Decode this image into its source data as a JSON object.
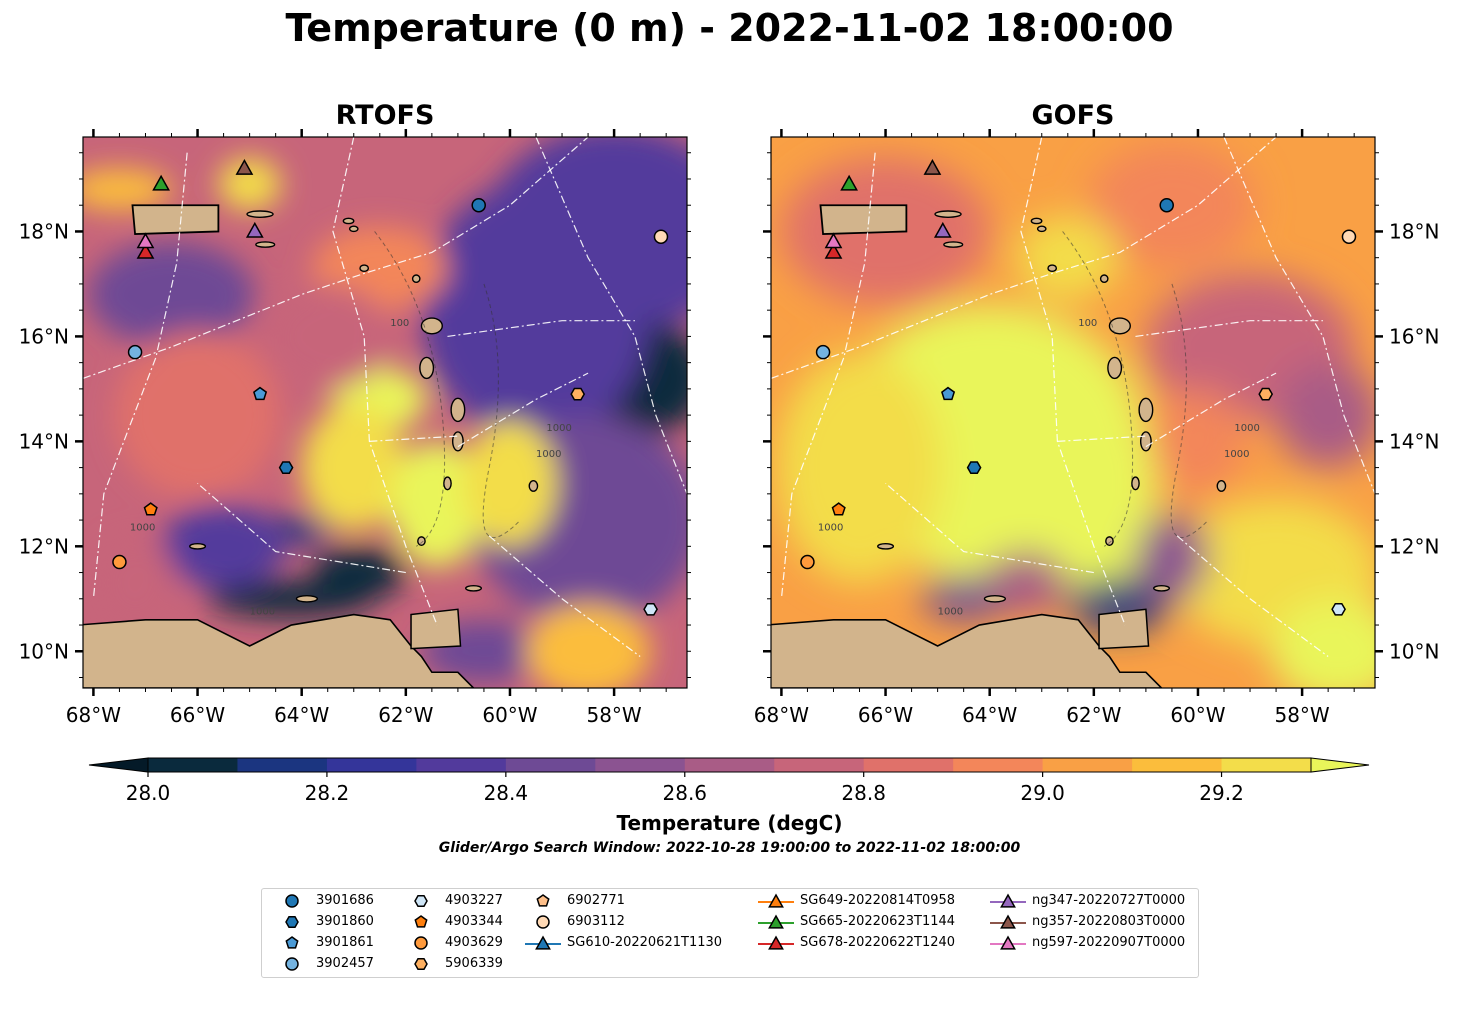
{
  "title": "Temperature (0 m) - 2022-11-02 18:00:00",
  "panels": [
    {
      "name": "RTOFS"
    },
    {
      "name": "GOFS"
    }
  ],
  "map": {
    "lon_range": [
      -68.2,
      -56.6
    ],
    "lat_range": [
      9.3,
      19.8
    ],
    "lon_ticks": [
      "68°W",
      "66°W",
      "64°W",
      "62°W",
      "60°W",
      "58°W"
    ],
    "lat_ticks_left": [
      "18°N",
      "16°N",
      "14°N",
      "12°N",
      "10°N"
    ],
    "lat_ticks_right": [
      "18°N",
      "16°N",
      "14°N",
      "12°N",
      "10°N"
    ],
    "bathymetry_contour_labels": [
      "100",
      "1000",
      "1000",
      "1000",
      "1000"
    ],
    "land_color": "#d2b48c",
    "boundary_style": "white dash-dot"
  },
  "colorbar": {
    "label": "Temperature (degC)",
    "tick_labels": [
      "28.0",
      "28.2",
      "28.4",
      "28.6",
      "28.8",
      "29.0",
      "29.2"
    ],
    "levels": [
      28.0,
      28.1,
      28.2,
      28.3,
      28.4,
      28.5,
      28.6,
      28.7,
      28.8,
      28.9,
      29.0,
      29.1,
      29.2,
      29.3
    ],
    "colors": [
      "#0a2a3d",
      "#1b3580",
      "#34359a",
      "#523a9c",
      "#6e4a95",
      "#8b5391",
      "#a95c86",
      "#c7657a",
      "#e0716a",
      "#f3865a",
      "#f9a045",
      "#fbbd3c",
      "#f3dd4a",
      "#e9f55a"
    ],
    "under_color": "#041a28",
    "over_color": "#e9f55a"
  },
  "search_window": "Glider/Argo Search Window: 2022-10-28 19:00:00 to 2022-11-02 18:00:00",
  "legend": {
    "col1": [
      "3901686",
      "3901860",
      "3901861",
      "3902457"
    ],
    "col2": [
      "4903227",
      "4903344",
      "4903629",
      "5906339"
    ],
    "col3": [
      "6902771",
      "6903112",
      "SG610-20220621T1130"
    ],
    "col4": [
      "SG649-20220814T0958",
      "SG665-20220623T1144",
      "SG678-20220622T1240"
    ],
    "col5": [
      "ng347-20220727T0000",
      "ng357-20220803T0000",
      "ng597-20220907T0000"
    ],
    "marker_colors": {
      "3901686": "#1f77b4",
      "3901860": "#1f77b4",
      "3901861": "#4a9ad6",
      "3902457": "#74b3e0",
      "4903227": "#cfe6f7",
      "4903344": "#ff7f0e",
      "4903629": "#ff9a3c",
      "5906339": "#ffb060",
      "6902771": "#ffc08a",
      "6903112": "#ffd9b5",
      "SG610-20220621T1130": "#1f77b4",
      "SG649-20220814T0958": "#ff7f0e",
      "SG665-20220623T1144": "#2ca02c",
      "SG678-20220622T1240": "#d62728",
      "ng347-20220727T0000": "#9467bd",
      "ng357-20220803T0000": "#8c564b",
      "ng597-20220907T0000": "#e377c2"
    }
  },
  "observations": [
    {
      "id": "3901686",
      "marker": "circle",
      "lon": -60.6,
      "lat": 18.5
    },
    {
      "id": "3901860",
      "marker": "hexagon",
      "lon": -64.3,
      "lat": 13.5
    },
    {
      "id": "3901861",
      "marker": "pentagon",
      "lon": -64.8,
      "lat": 14.9
    },
    {
      "id": "3902457",
      "marker": "circle",
      "lon": -67.2,
      "lat": 15.7
    },
    {
      "id": "4903227",
      "marker": "hexagon",
      "lon": -57.3,
      "lat": 10.8
    },
    {
      "id": "4903344",
      "marker": "pentagon",
      "lon": -66.9,
      "lat": 12.7
    },
    {
      "id": "4903629",
      "marker": "circle",
      "lon": -67.5,
      "lat": 11.7
    },
    {
      "id": "5906339",
      "marker": "hexagon",
      "lon": -58.7,
      "lat": 14.9
    },
    {
      "id": "6903112",
      "marker": "circle",
      "lon": -57.1,
      "lat": 17.9
    },
    {
      "id": "SG665-20220623T1144",
      "marker": "triangle",
      "lon": -66.7,
      "lat": 18.9
    },
    {
      "id": "SG678-20220622T1240",
      "marker": "triangle",
      "lon": -67.0,
      "lat": 17.6
    },
    {
      "id": "ng347-20220727T0000",
      "marker": "triangle",
      "lon": -64.9,
      "lat": 18.0
    },
    {
      "id": "ng357-20220803T0000",
      "marker": "triangle",
      "lon": -65.1,
      "lat": 19.2
    },
    {
      "id": "ng597-20220907T0000",
      "marker": "triangle",
      "lon": -67.0,
      "lat": 17.8
    }
  ]
}
